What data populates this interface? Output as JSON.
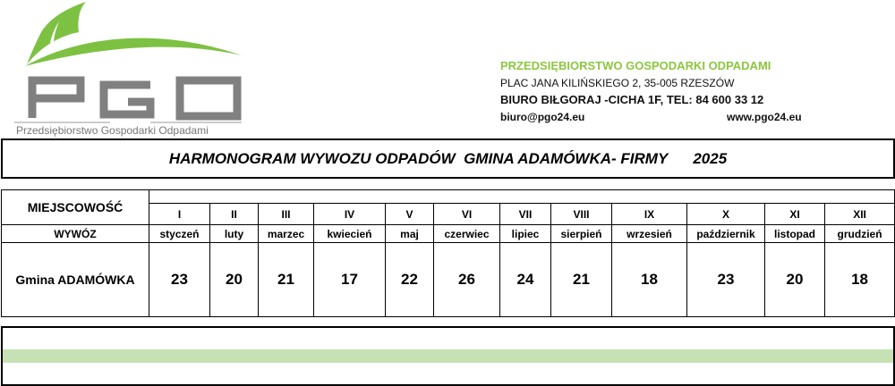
{
  "logo": {
    "letters": "PGO",
    "tagline": "Przedsiębiorstwo Gospodarki Odpadami",
    "colors": {
      "leaf": "#7dc142",
      "letters": "#808080"
    }
  },
  "company": {
    "name": "PRZEDSIĘBIORSTWO GOSPODARKI ODPADAMI",
    "address": "PLAC JANA KILIŃSKIEGO 2, 35-005 RZESZÓW",
    "office": "BIURO BIŁGORAJ -CICHA 1F, TEL: 84 600 33 12",
    "email": "biuro@pgo24.eu",
    "website": "www.pgo24.eu",
    "name_color": "#8cc63f"
  },
  "title": "HARMONOGRAM WYWOZU ODPADÓW  GMINA ADAMÓWKA- FIRMY      2025",
  "table": {
    "header_place": "MIEJSCOWOŚĆ",
    "header_pickup": "WYWÓZ",
    "months": [
      {
        "roman": "I",
        "name": "styczeń"
      },
      {
        "roman": "II",
        "name": "luty"
      },
      {
        "roman": "III",
        "name": "marzec"
      },
      {
        "roman": "IV",
        "name": "kwiecień"
      },
      {
        "roman": "V",
        "name": "maj"
      },
      {
        "roman": "VI",
        "name": "czerwiec"
      },
      {
        "roman": "VII",
        "name": "lipiec"
      },
      {
        "roman": "VIII",
        "name": "sierpień"
      },
      {
        "roman": "IX",
        "name": "wrzesień"
      },
      {
        "roman": "X",
        "name": "październik"
      },
      {
        "roman": "XI",
        "name": "listopad"
      },
      {
        "roman": "XII",
        "name": "grudzień"
      }
    ],
    "rows": [
      {
        "place": "Gmina ADAMÓWKA",
        "days": [
          "23",
          "20",
          "21",
          "17",
          "22",
          "26",
          "24",
          "21",
          "18",
          "23",
          "20",
          "18"
        ]
      }
    ]
  },
  "band_color": "#c6e1b4"
}
